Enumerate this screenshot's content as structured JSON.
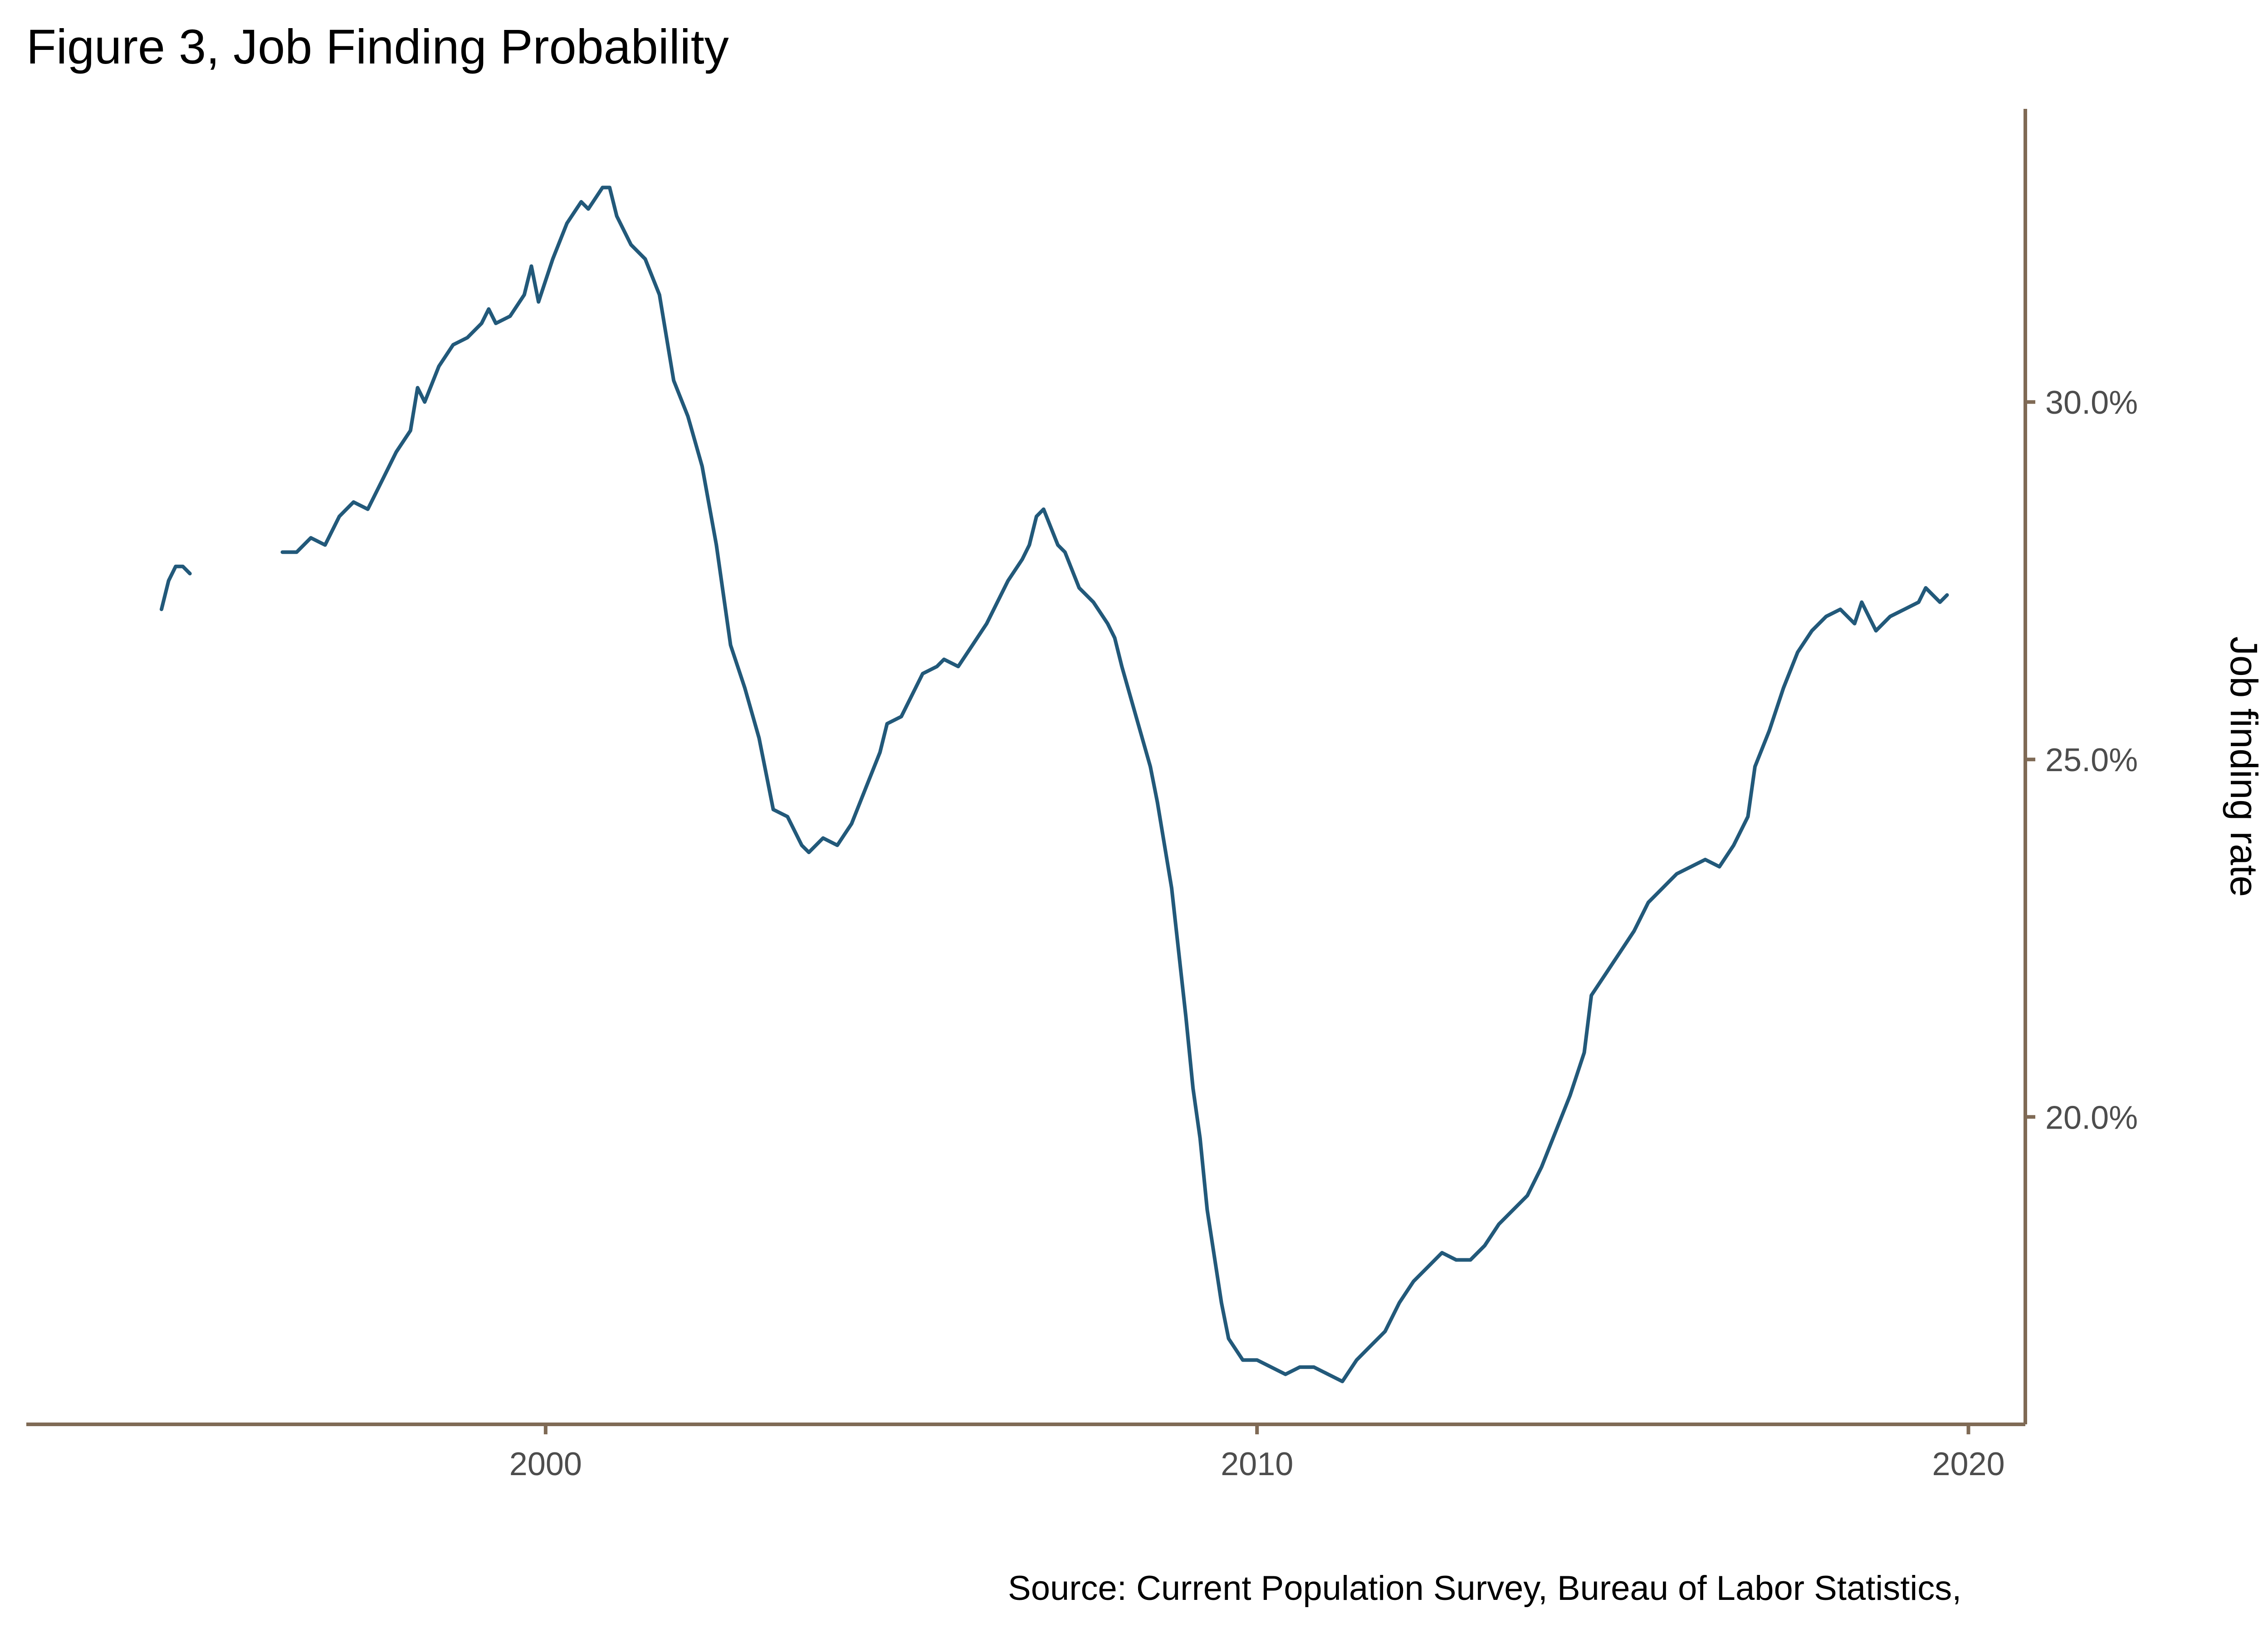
{
  "chart_data": {
    "type": "line",
    "title": "Figure 3, Job Finding Probability",
    "ylabel": "Job finding rate",
    "xlabel": "",
    "caption": "Source: Current Population Survey, Bureau of Labor Statistics,",
    "xlim": [
      1992.7,
      2020.8
    ],
    "ylim": [
      15.7,
      34.1
    ],
    "x_ticks": [
      2000,
      2010,
      2020
    ],
    "x_tick_labels": [
      "2000",
      "2010",
      "2020"
    ],
    "y_ticks": [
      20,
      25,
      30
    ],
    "y_tick_labels": [
      "20.0%",
      "25.0%",
      "30.0%"
    ],
    "y_axis_position": "right",
    "grid": false,
    "colors": {
      "line": "#22597a",
      "axis": "#7f6a55",
      "tick_label": "#4d4d4d"
    },
    "series": [
      {
        "segments": [
          [
            [
              1994.6,
              27.1
            ],
            [
              1994.7,
              27.5
            ],
            [
              1994.8,
              27.7
            ],
            [
              1994.9,
              27.7
            ],
            [
              1995.0,
              27.6
            ]
          ],
          [
            [
              1996.3,
              27.9
            ],
            [
              1996.5,
              27.9
            ],
            [
              1996.7,
              28.1
            ],
            [
              1996.9,
              28.0
            ],
            [
              1997.1,
              28.4
            ],
            [
              1997.3,
              28.6
            ],
            [
              1997.5,
              28.5
            ],
            [
              1997.7,
              28.9
            ],
            [
              1997.9,
              29.3
            ],
            [
              1998.1,
              29.6
            ],
            [
              1998.2,
              30.2
            ],
            [
              1998.3,
              30.0
            ],
            [
              1998.5,
              30.5
            ],
            [
              1998.7,
              30.8
            ],
            [
              1998.9,
              30.9
            ],
            [
              1999.1,
              31.1
            ],
            [
              1999.2,
              31.3
            ],
            [
              1999.3,
              31.1
            ],
            [
              1999.5,
              31.2
            ],
            [
              1999.7,
              31.5
            ],
            [
              1999.8,
              31.9
            ],
            [
              1999.9,
              31.4
            ],
            [
              2000.1,
              32.0
            ],
            [
              2000.3,
              32.5
            ],
            [
              2000.5,
              32.8
            ],
            [
              2000.6,
              32.7
            ],
            [
              2000.8,
              33.0
            ],
            [
              2000.9,
              33.0
            ],
            [
              2001.0,
              32.6
            ],
            [
              2001.2,
              32.2
            ],
            [
              2001.4,
              32.0
            ],
            [
              2001.6,
              31.5
            ],
            [
              2001.8,
              30.3
            ],
            [
              2002.0,
              29.8
            ],
            [
              2002.2,
              29.1
            ],
            [
              2002.4,
              28.0
            ],
            [
              2002.6,
              26.6
            ],
            [
              2002.8,
              26.0
            ],
            [
              2003.0,
              25.3
            ],
            [
              2003.1,
              24.8
            ],
            [
              2003.2,
              24.3
            ],
            [
              2003.4,
              24.2
            ],
            [
              2003.6,
              23.8
            ],
            [
              2003.7,
              23.7
            ],
            [
              2003.9,
              23.9
            ],
            [
              2004.1,
              23.8
            ],
            [
              2004.3,
              24.1
            ],
            [
              2004.5,
              24.6
            ],
            [
              2004.7,
              25.1
            ],
            [
              2004.8,
              25.5
            ],
            [
              2005.0,
              25.6
            ],
            [
              2005.2,
              26.0
            ],
            [
              2005.3,
              26.2
            ],
            [
              2005.5,
              26.3
            ],
            [
              2005.6,
              26.4
            ],
            [
              2005.8,
              26.3
            ],
            [
              2006.0,
              26.6
            ],
            [
              2006.2,
              26.9
            ],
            [
              2006.4,
              27.3
            ],
            [
              2006.5,
              27.5
            ],
            [
              2006.7,
              27.8
            ],
            [
              2006.8,
              28.0
            ],
            [
              2006.9,
              28.4
            ],
            [
              2007.0,
              28.5
            ],
            [
              2007.2,
              28.0
            ],
            [
              2007.3,
              27.9
            ],
            [
              2007.5,
              27.4
            ],
            [
              2007.7,
              27.2
            ],
            [
              2007.9,
              26.9
            ],
            [
              2008.0,
              26.7
            ],
            [
              2008.1,
              26.3
            ],
            [
              2008.3,
              25.6
            ],
            [
              2008.5,
              24.9
            ],
            [
              2008.6,
              24.4
            ],
            [
              2008.8,
              23.2
            ],
            [
              2009.0,
              21.4
            ],
            [
              2009.1,
              20.4
            ],
            [
              2009.2,
              19.7
            ],
            [
              2009.3,
              18.7
            ],
            [
              2009.5,
              17.4
            ],
            [
              2009.6,
              16.9
            ],
            [
              2009.8,
              16.6
            ],
            [
              2010.0,
              16.6
            ],
            [
              2010.2,
              16.5
            ],
            [
              2010.4,
              16.4
            ],
            [
              2010.6,
              16.5
            ],
            [
              2010.8,
              16.5
            ],
            [
              2011.0,
              16.4
            ],
            [
              2011.2,
              16.3
            ],
            [
              2011.4,
              16.6
            ],
            [
              2011.6,
              16.8
            ],
            [
              2011.8,
              17.0
            ],
            [
              2012.0,
              17.4
            ],
            [
              2012.2,
              17.7
            ],
            [
              2012.4,
              17.9
            ],
            [
              2012.6,
              18.1
            ],
            [
              2012.8,
              18.0
            ],
            [
              2013.0,
              18.0
            ],
            [
              2013.2,
              18.2
            ],
            [
              2013.4,
              18.5
            ],
            [
              2013.6,
              18.7
            ],
            [
              2013.8,
              18.9
            ],
            [
              2014.0,
              19.3
            ],
            [
              2014.2,
              19.8
            ],
            [
              2014.4,
              20.3
            ],
            [
              2014.6,
              20.9
            ],
            [
              2014.7,
              21.7
            ],
            [
              2014.9,
              22.0
            ],
            [
              2015.1,
              22.3
            ],
            [
              2015.3,
              22.6
            ],
            [
              2015.5,
              23.0
            ],
            [
              2015.7,
              23.2
            ],
            [
              2015.9,
              23.4
            ],
            [
              2016.1,
              23.5
            ],
            [
              2016.3,
              23.6
            ],
            [
              2016.5,
              23.5
            ],
            [
              2016.7,
              23.8
            ],
            [
              2016.9,
              24.2
            ],
            [
              2017.0,
              24.9
            ],
            [
              2017.2,
              25.4
            ],
            [
              2017.4,
              26.0
            ],
            [
              2017.6,
              26.5
            ],
            [
              2017.8,
              26.8
            ],
            [
              2018.0,
              27.0
            ],
            [
              2018.2,
              27.1
            ],
            [
              2018.4,
              26.9
            ],
            [
              2018.5,
              27.2
            ],
            [
              2018.7,
              26.8
            ],
            [
              2018.9,
              27.0
            ],
            [
              2019.1,
              27.1
            ],
            [
              2019.3,
              27.2
            ],
            [
              2019.4,
              27.4
            ],
            [
              2019.6,
              27.2
            ],
            [
              2019.7,
              27.3
            ]
          ]
        ]
      }
    ]
  }
}
